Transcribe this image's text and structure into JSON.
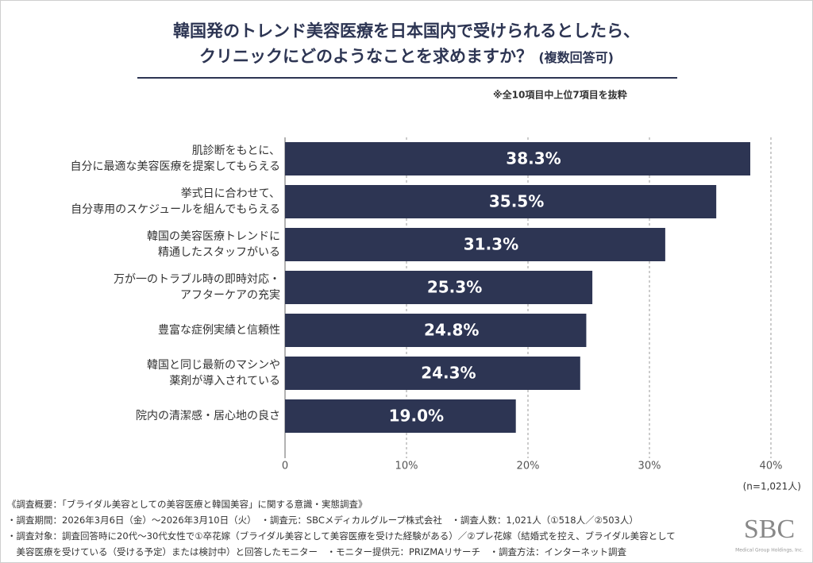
{
  "chart_data": {
    "type": "barh",
    "title": "韓国発のトレンド美容医療を日本国内で受けられるとしたら、\nクリニックにどのようなことを求めますか？",
    "title_suffix": "(複数回答可)",
    "subtitle": "※全10項目中上位7項目を抜粋",
    "categories": [
      "肌診断をもとに、\n自分に最適な美容医療を提案してもらえる",
      "挙式日に合わせて、\n自分専用のスケジュールを組んでもらえる",
      "韓国の美容医療トレンドに\n精通したスタッフがいる",
      "万が一のトラブル時の即時対応・\nアフターケアの充実",
      "豊富な症例実績と信頼性",
      "韓国と同じ最新のマシンや\n薬剤が導入されている",
      "院内の清潔感・居心地の良さ"
    ],
    "values": [
      38.3,
      35.5,
      31.3,
      25.3,
      24.8,
      24.3,
      19.0
    ],
    "value_labels": [
      "38.3%",
      "35.5%",
      "31.3%",
      "25.3%",
      "24.8%",
      "24.3%",
      "19.0%"
    ],
    "color": "#2d3553",
    "xlim": [
      0,
      40
    ],
    "xticks": [
      0,
      {
        "value": 10,
        "label": "10%"
      },
      {
        "value": 20,
        "label": "20%"
      },
      {
        "value": 30,
        "label": "30%"
      },
      {
        "value": 40,
        "label": "40%"
      }
    ],
    "grid": true,
    "sample_note": "(n=1,021人)",
    "notes": [
      "《調査概要：「ブライダル美容としての美容医療と韓国美容」に関する意識・実態調査》",
      "・調査期間：2026年3月6日（金）～2026年3月10日（火）　・調査元：SBCメディカルグループ株式会社　・調査人数：1,021人（①518人／②503人）",
      "・調査対象：調査回答時に20代～30代女性で①卒花嫁（ブライダル美容として美容医療を受けた経験がある）／②プレ花嫁（結婚式を控え、ブライダル美容として",
      "　美容医療を受けている（受ける予定）または検討中）と回答したモニター　・モニター提供元：PRIZMAリサーチ　・調査方法：インターネット調査"
    ],
    "logo": "SBC",
    "logo_sub": "Medical Group Holdings, Inc."
  }
}
